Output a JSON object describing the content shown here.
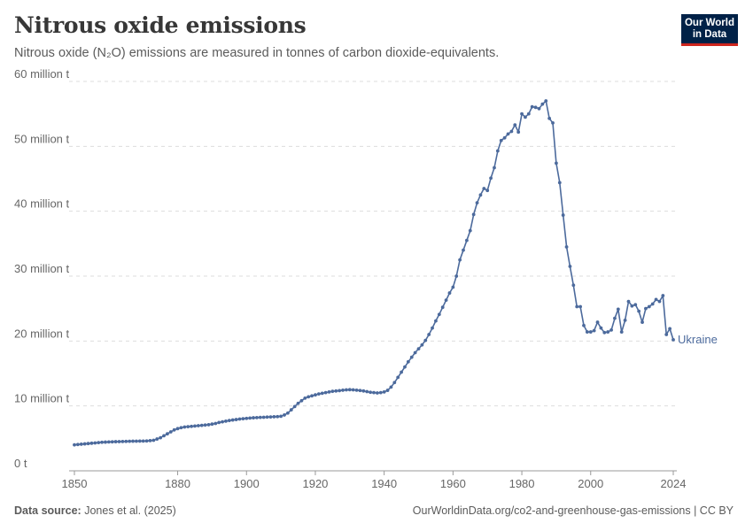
{
  "header": {
    "title": "Nitrous oxide emissions",
    "subtitle": "Nitrous oxide (N₂O) emissions are measured in tonnes of carbon dioxide-equivalents."
  },
  "logo": {
    "line1": "Our World",
    "line2": "in Data"
  },
  "footer": {
    "source_label": "Data source:",
    "source_value": "Jones et al. (2025)",
    "url_text": "OurWorldinData.org/co2-and-greenhouse-gas-emissions | CC BY"
  },
  "colors": {
    "series": "#4c6a9c",
    "grid": "#dddddd",
    "text": "#5b5b5b",
    "logo_bg": "#002147",
    "logo_accent": "#ce261e"
  },
  "chart_data": {
    "type": "line",
    "xlim": [
      1850,
      2024
    ],
    "ylim": [
      0,
      60000000
    ],
    "y_ticks": [
      {
        "value": 0,
        "label": "0 t"
      },
      {
        "value": 10000000,
        "label": "10 million t"
      },
      {
        "value": 20000000,
        "label": "20 million t"
      },
      {
        "value": 30000000,
        "label": "30 million t"
      },
      {
        "value": 40000000,
        "label": "40 million t"
      },
      {
        "value": 50000000,
        "label": "50 million t"
      },
      {
        "value": 60000000,
        "label": "60 million t"
      }
    ],
    "x_ticks": [
      {
        "value": 1850,
        "label": "1850"
      },
      {
        "value": 1880,
        "label": "1880"
      },
      {
        "value": 1900,
        "label": "1900"
      },
      {
        "value": 1920,
        "label": "1920"
      },
      {
        "value": 1940,
        "label": "1940"
      },
      {
        "value": 1960,
        "label": "1960"
      },
      {
        "value": 1980,
        "label": "1980"
      },
      {
        "value": 2000,
        "label": "2000"
      },
      {
        "value": 2024,
        "label": "2024"
      }
    ],
    "grid": "horizontal dashed",
    "series": [
      {
        "name": "Ukraine",
        "points": [
          [
            1850,
            4000000
          ],
          [
            1851,
            4050000
          ],
          [
            1852,
            4100000
          ],
          [
            1853,
            4150000
          ],
          [
            1854,
            4200000
          ],
          [
            1855,
            4250000
          ],
          [
            1856,
            4300000
          ],
          [
            1857,
            4350000
          ],
          [
            1858,
            4400000
          ],
          [
            1859,
            4420000
          ],
          [
            1860,
            4450000
          ],
          [
            1861,
            4470000
          ],
          [
            1862,
            4490000
          ],
          [
            1863,
            4500000
          ],
          [
            1864,
            4520000
          ],
          [
            1865,
            4530000
          ],
          [
            1866,
            4550000
          ],
          [
            1867,
            4560000
          ],
          [
            1868,
            4570000
          ],
          [
            1869,
            4580000
          ],
          [
            1870,
            4590000
          ],
          [
            1871,
            4600000
          ],
          [
            1872,
            4650000
          ],
          [
            1873,
            4700000
          ],
          [
            1874,
            4900000
          ],
          [
            1875,
            5100000
          ],
          [
            1876,
            5400000
          ],
          [
            1877,
            5700000
          ],
          [
            1878,
            6000000
          ],
          [
            1879,
            6300000
          ],
          [
            1880,
            6500000
          ],
          [
            1881,
            6650000
          ],
          [
            1882,
            6750000
          ],
          [
            1883,
            6800000
          ],
          [
            1884,
            6850000
          ],
          [
            1885,
            6900000
          ],
          [
            1886,
            6950000
          ],
          [
            1887,
            7000000
          ],
          [
            1888,
            7050000
          ],
          [
            1889,
            7100000
          ],
          [
            1890,
            7200000
          ],
          [
            1891,
            7300000
          ],
          [
            1892,
            7450000
          ],
          [
            1893,
            7550000
          ],
          [
            1894,
            7650000
          ],
          [
            1895,
            7750000
          ],
          [
            1896,
            7830000
          ],
          [
            1897,
            7900000
          ],
          [
            1898,
            7980000
          ],
          [
            1899,
            8030000
          ],
          [
            1900,
            8080000
          ],
          [
            1901,
            8130000
          ],
          [
            1902,
            8170000
          ],
          [
            1903,
            8200000
          ],
          [
            1904,
            8230000
          ],
          [
            1905,
            8250000
          ],
          [
            1906,
            8280000
          ],
          [
            1907,
            8300000
          ],
          [
            1908,
            8330000
          ],
          [
            1909,
            8350000
          ],
          [
            1910,
            8400000
          ],
          [
            1911,
            8600000
          ],
          [
            1912,
            8900000
          ],
          [
            1913,
            9400000
          ],
          [
            1914,
            9900000
          ],
          [
            1915,
            10400000
          ],
          [
            1916,
            10800000
          ],
          [
            1917,
            11200000
          ],
          [
            1918,
            11400000
          ],
          [
            1919,
            11550000
          ],
          [
            1920,
            11700000
          ],
          [
            1921,
            11850000
          ],
          [
            1922,
            11950000
          ],
          [
            1923,
            12050000
          ],
          [
            1924,
            12150000
          ],
          [
            1925,
            12250000
          ],
          [
            1926,
            12300000
          ],
          [
            1927,
            12350000
          ],
          [
            1928,
            12420000
          ],
          [
            1929,
            12480000
          ],
          [
            1930,
            12500000
          ],
          [
            1931,
            12480000
          ],
          [
            1932,
            12430000
          ],
          [
            1933,
            12380000
          ],
          [
            1934,
            12300000
          ],
          [
            1935,
            12200000
          ],
          [
            1936,
            12100000
          ],
          [
            1937,
            12050000
          ],
          [
            1938,
            12000000
          ],
          [
            1939,
            12050000
          ],
          [
            1940,
            12150000
          ],
          [
            1941,
            12400000
          ],
          [
            1942,
            12900000
          ],
          [
            1943,
            13600000
          ],
          [
            1944,
            14400000
          ],
          [
            1945,
            15200000
          ],
          [
            1946,
            16000000
          ],
          [
            1947,
            16800000
          ],
          [
            1948,
            17500000
          ],
          [
            1949,
            18200000
          ],
          [
            1950,
            18800000
          ],
          [
            1951,
            19400000
          ],
          [
            1952,
            20100000
          ],
          [
            1953,
            21000000
          ],
          [
            1954,
            22000000
          ],
          [
            1955,
            23100000
          ],
          [
            1956,
            24100000
          ],
          [
            1957,
            25200000
          ],
          [
            1958,
            26300000
          ],
          [
            1959,
            27400000
          ],
          [
            1960,
            28300000
          ],
          [
            1961,
            30000000
          ],
          [
            1962,
            32500000
          ],
          [
            1963,
            34000000
          ],
          [
            1964,
            35500000
          ],
          [
            1965,
            37000000
          ],
          [
            1966,
            39500000
          ],
          [
            1967,
            41300000
          ],
          [
            1968,
            42500000
          ],
          [
            1969,
            43500000
          ],
          [
            1970,
            43200000
          ],
          [
            1971,
            45100000
          ],
          [
            1972,
            46700000
          ],
          [
            1973,
            49300000
          ],
          [
            1974,
            50900000
          ],
          [
            1975,
            51300000
          ],
          [
            1976,
            51900000
          ],
          [
            1977,
            52300000
          ],
          [
            1978,
            53300000
          ],
          [
            1979,
            52200000
          ],
          [
            1980,
            55000000
          ],
          [
            1981,
            54500000
          ],
          [
            1982,
            55000000
          ],
          [
            1983,
            56100000
          ],
          [
            1984,
            56000000
          ],
          [
            1985,
            55800000
          ],
          [
            1986,
            56500000
          ],
          [
            1987,
            57000000
          ],
          [
            1988,
            54300000
          ],
          [
            1989,
            53600000
          ],
          [
            1990,
            47400000
          ],
          [
            1991,
            44400000
          ],
          [
            1992,
            39400000
          ],
          [
            1993,
            34500000
          ],
          [
            1994,
            31500000
          ],
          [
            1995,
            28600000
          ],
          [
            1996,
            25300000
          ],
          [
            1997,
            25300000
          ],
          [
            1998,
            22400000
          ],
          [
            1999,
            21400000
          ],
          [
            2000,
            21400000
          ],
          [
            2001,
            21600000
          ],
          [
            2002,
            22900000
          ],
          [
            2003,
            22000000
          ],
          [
            2004,
            21300000
          ],
          [
            2005,
            21400000
          ],
          [
            2006,
            21700000
          ],
          [
            2007,
            23500000
          ],
          [
            2008,
            24900000
          ],
          [
            2009,
            21400000
          ],
          [
            2010,
            23200000
          ],
          [
            2011,
            26100000
          ],
          [
            2012,
            25400000
          ],
          [
            2013,
            25600000
          ],
          [
            2014,
            24600000
          ],
          [
            2015,
            22900000
          ],
          [
            2016,
            25000000
          ],
          [
            2017,
            25300000
          ],
          [
            2018,
            25700000
          ],
          [
            2019,
            26400000
          ],
          [
            2020,
            26100000
          ],
          [
            2021,
            27000000
          ],
          [
            2022,
            21000000
          ],
          [
            2023,
            21900000
          ],
          [
            2024,
            20200000
          ]
        ]
      }
    ]
  }
}
